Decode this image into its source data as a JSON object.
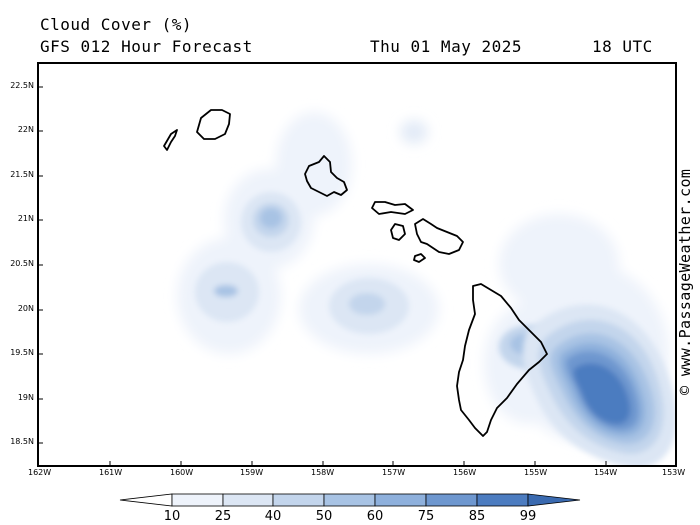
{
  "header": {
    "title": "Cloud Cover (%)",
    "subtitle": "GFS 012 Hour Forecast",
    "date": "Thu 01 May 2025",
    "time": "18 UTC"
  },
  "map": {
    "lat_labels": [
      "22.5N",
      "22N",
      "21.5N",
      "21N",
      "20.5N",
      "20N",
      "19.5N",
      "19N",
      "18.5N"
    ],
    "lon_labels": [
      "162W",
      "161W",
      "160W",
      "159W",
      "158W",
      "157W",
      "156W",
      "155W",
      "154W",
      "153W"
    ]
  },
  "copyright": "© www.PassageWeather.com",
  "legend": {
    "labels": [
      "10",
      "25",
      "40",
      "50",
      "60",
      "75",
      "85",
      "99"
    ],
    "colors": [
      "#ffffff",
      "#eef3fb",
      "#dce6f4",
      "#c3d5ec",
      "#a8c3e4",
      "#8eb0dc",
      "#6e97cf",
      "#4c7cc0",
      "#3a6ab0"
    ]
  }
}
